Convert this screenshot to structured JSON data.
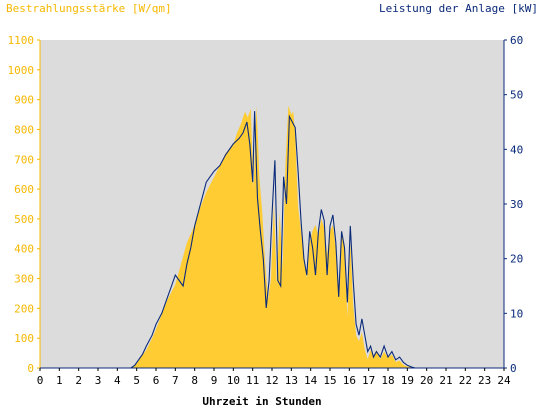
{
  "chart_data": {
    "type": "area",
    "title_left": "Bestrahlungsstärke [W/qm]",
    "title_right": "Leistung der Anlage [kW]",
    "xlabel": "Uhrzeit in Stunden",
    "xlim": [
      0,
      24
    ],
    "ylim_left": [
      0,
      1100
    ],
    "ylim_right": [
      0,
      60
    ],
    "x_ticks": [
      "0",
      "1",
      "2",
      "3",
      "4",
      "5",
      "6",
      "7",
      "8",
      "9",
      "10",
      "11",
      "12",
      "13",
      "14",
      "15",
      "16",
      "17",
      "18",
      "19",
      "20",
      "21",
      "22",
      "23",
      "24"
    ],
    "y_left_ticks": [
      "0",
      "100",
      "200",
      "300",
      "400",
      "500",
      "600",
      "700",
      "800",
      "900",
      "1000",
      "1100"
    ],
    "y_right_ticks": [
      "0",
      "10",
      "20",
      "30",
      "40",
      "50",
      "60"
    ],
    "colors": {
      "plot_bg": "#dcdcdc",
      "irradiance": "#ffcc33",
      "power": "#0a2a7a",
      "left_axis": "#f6b800",
      "right_axis": "#0a2a7a"
    },
    "series": [
      {
        "axis": "left",
        "kind": "area",
        "x": [
          0,
          4.6,
          4.8,
          5.0,
          5.2,
          5.5,
          5.8,
          6.0,
          6.3,
          6.6,
          7.0,
          7.3,
          7.6,
          8.0,
          8.3,
          8.6,
          9.0,
          9.3,
          9.6,
          10.0,
          10.2,
          10.4,
          10.6,
          10.75,
          10.9,
          11.05,
          11.2,
          11.35,
          11.5,
          11.65,
          11.8,
          11.95,
          12.1,
          12.25,
          12.4,
          12.55,
          12.7,
          12.85,
          13.0,
          13.1,
          13.2,
          13.35,
          13.5,
          13.65,
          13.8,
          13.95,
          14.1,
          14.25,
          14.4,
          14.55,
          14.7,
          14.85,
          15.0,
          15.15,
          15.3,
          15.45,
          15.6,
          15.75,
          15.9,
          16.05,
          16.2,
          16.35,
          16.5,
          16.65,
          16.8,
          16.95,
          17.1,
          17.25,
          17.4,
          17.6,
          17.8,
          18.0,
          18.2,
          18.4,
          18.6,
          18.8,
          19.0,
          19.2,
          19.4,
          24
        ],
        "y": [
          0,
          0,
          5,
          15,
          35,
          60,
          100,
          130,
          180,
          230,
          280,
          350,
          420,
          480,
          540,
          590,
          640,
          680,
          720,
          750,
          790,
          820,
          860,
          840,
          870,
          600,
          880,
          640,
          520,
          350,
          230,
          300,
          550,
          280,
          520,
          330,
          690,
          880,
          850,
          860,
          780,
          540,
          460,
          380,
          300,
          420,
          460,
          480,
          440,
          500,
          470,
          380,
          460,
          480,
          400,
          240,
          460,
          400,
          170,
          420,
          210,
          110,
          90,
          120,
          60,
          30,
          60,
          40,
          60,
          30,
          55,
          35,
          45,
          20,
          25,
          10,
          5,
          3,
          0,
          0
        ]
      },
      {
        "axis": "right",
        "kind": "line",
        "x": [
          0,
          4.7,
          4.9,
          5.1,
          5.3,
          5.5,
          5.8,
          6.0,
          6.3,
          6.6,
          6.8,
          7.0,
          7.2,
          7.4,
          7.6,
          7.8,
          8.0,
          8.3,
          8.6,
          9.0,
          9.3,
          9.6,
          10.0,
          10.3,
          10.5,
          10.7,
          10.85,
          11.0,
          11.1,
          11.25,
          11.4,
          11.55,
          11.7,
          11.85,
          12.0,
          12.15,
          12.3,
          12.45,
          12.6,
          12.75,
          12.9,
          13.05,
          13.2,
          13.35,
          13.5,
          13.65,
          13.8,
          13.95,
          14.1,
          14.25,
          14.4,
          14.55,
          14.7,
          14.85,
          15.0,
          15.15,
          15.3,
          15.45,
          15.6,
          15.75,
          15.9,
          16.05,
          16.2,
          16.35,
          16.5,
          16.65,
          16.8,
          16.95,
          17.1,
          17.25,
          17.4,
          17.6,
          17.8,
          18.0,
          18.2,
          18.4,
          18.6,
          18.8,
          19.0,
          19.2,
          19.4,
          24
        ],
        "y": [
          0,
          0,
          0.5,
          1.5,
          2.5,
          4,
          6,
          8,
          10,
          13,
          15,
          17,
          16,
          15,
          19,
          22,
          26,
          30,
          34,
          36,
          37,
          39,
          41,
          42,
          43,
          45,
          41,
          34,
          47,
          31,
          25,
          20,
          11,
          16,
          28,
          38,
          16,
          15,
          35,
          30,
          46,
          45,
          44,
          36,
          27,
          20,
          17,
          25,
          22,
          17,
          25,
          29,
          27,
          17,
          26,
          28,
          23,
          13,
          25,
          22,
          12,
          26,
          16,
          8,
          6,
          9,
          6,
          3,
          4,
          2,
          3,
          2,
          4,
          2,
          3,
          1.5,
          2,
          1,
          0.5,
          0.2,
          0,
          0
        ]
      }
    ]
  }
}
